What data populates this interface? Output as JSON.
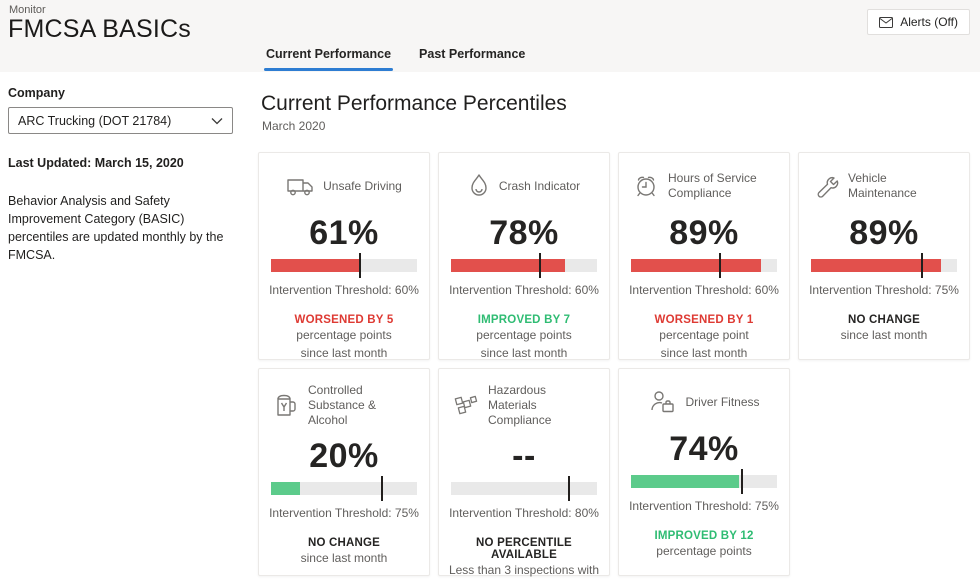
{
  "header": {
    "eyebrow": "Monitor",
    "title": "FMCSA BASICs",
    "alerts_button": "Alerts (Off)",
    "tabs": [
      {
        "label": "Current Performance",
        "active": true
      },
      {
        "label": "Past Performance",
        "active": false
      }
    ]
  },
  "sidebar": {
    "company_label": "Company",
    "company_value": "ARC Trucking (DOT 21784)",
    "last_updated": "Last Updated: March 15, 2020",
    "description": "Behavior Analysis and Safety Improvement Category (BASIC) percentiles are updated monthly by the FMCSA."
  },
  "main": {
    "title": "Current Performance Percentiles",
    "subtitle": "March 2020"
  },
  "colors": {
    "red": "#e2504c",
    "red_text": "#de3a33",
    "green": "#5ccb8b",
    "green_text": "#2fbc73",
    "dark_text": "#252423",
    "track": "#e9e9e9",
    "tab_accent": "#2e7dd2"
  },
  "cards": [
    {
      "icon": "truck-icon",
      "label": "Unsafe Driving",
      "value": "61%",
      "percent": 61,
      "threshold": 60,
      "threshold_label": "Intervention Threshold: 60%",
      "bar_color": "red",
      "change_headline": "WORSENED BY 5",
      "change_color": "red_text",
      "change_lines": [
        "percentage points",
        "since last month"
      ]
    },
    {
      "icon": "flame-icon",
      "label": "Crash Indicator",
      "value": "78%",
      "percent": 78,
      "threshold": 60,
      "threshold_label": "Intervention Threshold: 60%",
      "bar_color": "red",
      "change_headline": "IMPROVED BY 7",
      "change_color": "green_text",
      "change_lines": [
        "percentage points",
        "since last month"
      ]
    },
    {
      "icon": "alarm-clock-icon",
      "label": "Hours of Service Compliance",
      "value": "89%",
      "percent": 89,
      "threshold": 60,
      "threshold_label": "Intervention Threshold: 60%",
      "bar_color": "red",
      "change_headline": "WORSENED BY 1",
      "change_color": "red_text",
      "change_lines": [
        "percentage point",
        "since last month"
      ]
    },
    {
      "icon": "wrench-icon",
      "label": "Vehicle Maintenance",
      "value": "89%",
      "percent": 89,
      "threshold": 75,
      "threshold_label": "Intervention Threshold: 75%",
      "bar_color": "red",
      "change_headline": "NO CHANGE",
      "change_color": "dark_text",
      "change_lines": [
        "since last month"
      ]
    },
    {
      "icon": "beer-mug-icon",
      "label": "Controlled Substance & Alcohol",
      "value": "20%",
      "percent": 20,
      "threshold": 75,
      "threshold_label": "Intervention Threshold: 75%",
      "bar_color": "green",
      "change_headline": "NO CHANGE",
      "change_color": "dark_text",
      "change_lines": [
        "since last month"
      ]
    },
    {
      "icon": "packages-icon",
      "label": "Hazardous Materials Compliance",
      "value": "--",
      "percent": 0,
      "threshold": 80,
      "threshold_label": "Intervention Threshold: 80%",
      "bar_color": "none",
      "change_headline": "NO PERCENTILE AVAILABLE",
      "change_color": "dark_text",
      "change_lines": [
        "Less than 3 inspections with"
      ]
    },
    {
      "icon": "driver-icon",
      "label": "Driver Fitness",
      "value": "74%",
      "percent": 74,
      "threshold": 75,
      "threshold_label": "Intervention Threshold: 75%",
      "bar_color": "green",
      "change_headline": "IMPROVED BY 12",
      "change_color": "green_text",
      "change_lines": [
        "percentage points"
      ]
    }
  ]
}
